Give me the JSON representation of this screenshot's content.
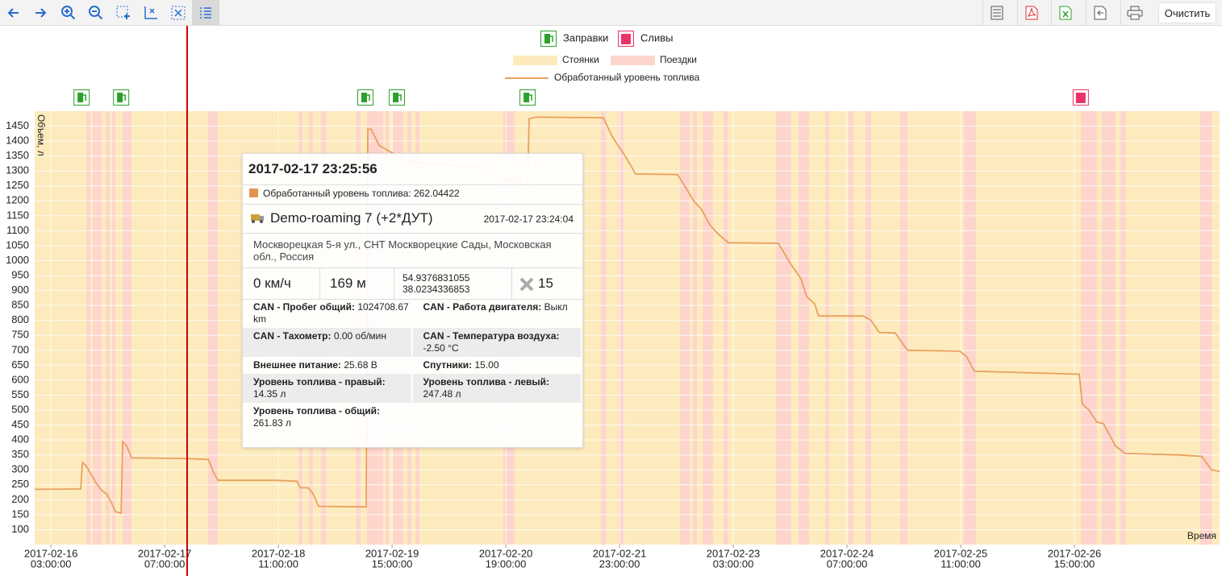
{
  "toolbar": {
    "clear_button": "Очистить"
  },
  "chart_data": {
    "type": "line",
    "y_label": "Объем, л",
    "x_label": "Время",
    "xlim": [
      "2017-02-15 23:00",
      "2017-02-28 02:45"
    ],
    "xticks": [
      {
        "date": "2017-02-16",
        "time": "03:00:00"
      },
      {
        "date": "2017-02-17",
        "time": "07:00:00"
      },
      {
        "date": "2017-02-18",
        "time": "11:00:00"
      },
      {
        "date": "2017-02-19",
        "time": "15:00:00"
      },
      {
        "date": "2017-02-20",
        "time": "19:00:00"
      },
      {
        "date": "2017-02-21",
        "time": "23:00:00"
      },
      {
        "date": "2017-02-23",
        "time": "03:00:00"
      },
      {
        "date": "2017-02-24",
        "time": "07:00:00"
      },
      {
        "date": "2017-02-25",
        "time": "11:00:00"
      },
      {
        "date": "2017-02-26",
        "time": "15:00:00"
      }
    ],
    "ylim": [
      50,
      1500
    ],
    "yticks": [
      100,
      150,
      200,
      250,
      300,
      350,
      400,
      450,
      500,
      550,
      600,
      650,
      700,
      750,
      800,
      850,
      900,
      950,
      1000,
      1050,
      1100,
      1150,
      1200,
      1250,
      1300,
      1350,
      1400,
      1450
    ],
    "grid": true,
    "events": [
      {
        "name": "Заправки",
        "color": "#2ca02c",
        "x": [
          "2017-02-16 10:33",
          "2017-02-16 20:17",
          "2017-02-19 08:26",
          "2017-02-19 16:11",
          "2017-02-21 00:22"
        ]
      },
      {
        "name": "Сливы",
        "color": "#ea3468",
        "x": [
          "2017-02-26 16:34"
        ]
      }
    ],
    "bands": [
      {
        "name": "Стоянки",
        "color": "#fdebbd"
      },
      {
        "name": "Поездки",
        "color": "#fdd5cd",
        "intervals": [
          [
            "2017-02-16 11:44",
            "2017-02-16 12:44"
          ],
          [
            "2017-02-16 13:20",
            "2017-02-16 15:31"
          ],
          [
            "2017-02-16 16:30",
            "2017-02-16 17:30"
          ],
          [
            "2017-02-16 18:05",
            "2017-02-16 18:53"
          ],
          [
            "2017-02-16 20:40",
            "2017-02-16 22:52"
          ],
          [
            "2017-02-17 17:43",
            "2017-02-17 20:06"
          ],
          [
            "2017-02-18 15:58",
            "2017-02-18 16:57"
          ],
          [
            "2017-02-18 18:32",
            "2017-02-18 19:32"
          ],
          [
            "2017-02-18 21:31",
            "2017-02-18 22:43"
          ],
          [
            "2017-02-19 06:04",
            "2017-02-19 07:15"
          ],
          [
            "2017-02-19 08:50",
            "2017-02-19 12:49"
          ],
          [
            "2017-02-19 13:25",
            "2017-02-19 14:12"
          ],
          [
            "2017-02-19 15:11",
            "2017-02-19 17:47"
          ],
          [
            "2017-02-19 18:46",
            "2017-02-19 19:46"
          ],
          [
            "2017-02-19 20:45",
            "2017-02-19 21:45"
          ],
          [
            "2017-02-20 18:24",
            "2017-02-20 21:11"
          ],
          [
            "2017-02-21 18:26",
            "2017-02-21 19:37"
          ],
          [
            "2017-02-21 22:36",
            "2017-02-21 23:59"
          ],
          [
            "2017-02-22 13:53",
            "2017-02-22 16:16"
          ],
          [
            "2017-02-22 17:04",
            "2017-02-22 18:04"
          ],
          [
            "2017-02-22 19:27",
            "2017-02-22 22:02"
          ],
          [
            "2017-02-23 00:37",
            "2017-02-23 01:48"
          ],
          [
            "2017-02-23 13:31",
            "2017-02-23 17:17"
          ],
          [
            "2017-02-23 19:04",
            "2017-02-23 21:40"
          ],
          [
            "2017-02-24 01:38",
            "2017-02-24 02:37"
          ],
          [
            "2017-02-24 07:23",
            "2017-02-24 08:35"
          ],
          [
            "2017-02-24 11:34",
            "2017-02-24 12:57"
          ],
          [
            "2017-02-24 20:06",
            "2017-02-24 21:53"
          ],
          [
            "2017-02-25 11:47",
            "2017-02-25 14:46"
          ],
          [
            "2017-02-26 16:34",
            "2017-02-26 20:33"
          ],
          [
            "2017-02-26 21:44",
            "2017-02-27 01:07"
          ],
          [
            "2017-02-27 02:18",
            "2017-02-27 03:41"
          ],
          [
            "2017-02-27 21:58",
            "2017-02-28 00:56"
          ]
        ]
      }
    ],
    "series": [
      {
        "name": "Обработанный уровень топлива",
        "color": "#e9a061",
        "x": [
          "2017-02-15 23:00",
          "2017-02-16 10:21",
          "2017-02-16 10:45",
          "2017-02-16 11:32",
          "2017-02-16 12:44",
          "2017-02-16 13:55",
          "2017-02-16 15:31",
          "2017-02-16 16:42",
          "2017-02-16 17:54",
          "2017-02-16 18:53",
          "2017-02-16 20:17",
          "2017-02-16 20:40",
          "2017-02-16 21:40",
          "2017-02-16 22:52",
          "2017-02-17 12:10",
          "2017-02-17 17:43",
          "2017-02-17 19:07",
          "2017-02-17 20:06",
          "2017-02-18 10:00",
          "2017-02-18 15:34",
          "2017-02-18 16:22",
          "2017-02-18 18:20",
          "2017-02-18 19:32",
          "2017-02-18 20:56",
          "2017-02-19 08:38",
          "2017-02-19 09:02",
          "2017-02-19 09:50",
          "2017-02-19 11:49",
          "2017-02-19 15:47",
          "2017-02-19 19:46",
          "2017-02-20 13:38",
          "2017-02-20 19:35",
          "2017-02-21 00:22",
          "2017-02-21 00:45",
          "2017-02-21 02:32",
          "2017-02-21 19:01",
          "2017-02-21 21:01",
          "2017-02-21 22:24",
          "2017-02-22 00:23",
          "2017-02-22 02:58",
          "2017-02-22 13:17",
          "2017-02-22 15:17",
          "2017-02-22 17:16",
          "2017-02-22 19:15",
          "2017-02-22 21:14",
          "2017-02-22 23:13",
          "2017-02-23 01:48",
          "2017-02-23 14:07",
          "2017-02-23 17:05",
          "2017-02-23 19:40",
          "2017-02-23 21:04",
          "2017-02-23 23:03",
          "2017-02-24 00:02",
          "2017-02-24 10:58",
          "2017-02-24 12:57",
          "2017-02-24 14:56",
          "2017-02-24 18:54",
          "2017-02-24 21:53",
          "2017-02-25 10:47",
          "2017-02-25 12:23",
          "2017-02-25 14:22",
          "2017-02-26 16:11",
          "2017-02-26 16:58",
          "2017-02-26 18:34",
          "2017-02-26 20:33",
          "2017-02-26 22:08",
          "2017-02-27 01:07",
          "2017-02-27 03:30",
          "2017-02-27 16:24",
          "2017-02-27 22:22",
          "2017-02-28 00:44",
          "2017-02-28 02:45"
        ],
        "values": [
          235,
          236,
          325,
          315,
          290,
          260,
          230,
          220,
          190,
          160,
          155,
          395,
          380,
          340,
          338,
          335,
          290,
          265,
          265,
          262,
          240,
          240,
          220,
          178,
          176,
          1440,
          1440,
          1385,
          1355,
          1330,
          1310,
          1270,
          1250,
          1475,
          1480,
          1478,
          1420,
          1390,
          1350,
          1290,
          1288,
          1245,
          1200,
          1170,
          1120,
          1090,
          1060,
          1058,
          990,
          940,
          880,
          855,
          815,
          815,
          800,
          760,
          758,
          700,
          697,
          680,
          630,
          620,
          520,
          500,
          460,
          455,
          380,
          355,
          350,
          345,
          300,
          295
        ]
      }
    ]
  },
  "tooltip": {
    "time": "2017-02-17 23:25:56",
    "series_name": "Обработанный уровень топлива:",
    "series_value": 262.04422,
    "object": "Demo-roaming 7 (+2*ДУТ)",
    "object_time": "2017-02-17 23:24:04",
    "address": "Москворецкая 5-я ул., СНТ Москворецкие Сады, Московская обл., Россия",
    "speed": "0 км/ч",
    "distance": "169 м",
    "lat": 54.9376831055,
    "lon": 38.0234336853,
    "satellites": 15,
    "params": [
      {
        "name": "CAN - Пробег общий:",
        "value": "1024708.67 km"
      },
      {
        "name": "CAN - Работа двигателя:",
        "value": "Выкл"
      },
      {
        "name": "CAN - Тахометр:",
        "value": "0.00 об/мин"
      },
      {
        "name": "CAN - Температура воздуха:",
        "value": "-2.50 °C"
      },
      {
        "name": "Внешнее питание:",
        "value": "25.68 В"
      },
      {
        "name": "Спутники:",
        "value": "15.00"
      },
      {
        "name": "Уровень топлива - правый:",
        "value": "14.35 л"
      },
      {
        "name": "Уровень топлива - левый:",
        "value": "247.48 л"
      },
      {
        "name": "Уровень топлива - общий:",
        "value": "261.83 л"
      }
    ]
  }
}
